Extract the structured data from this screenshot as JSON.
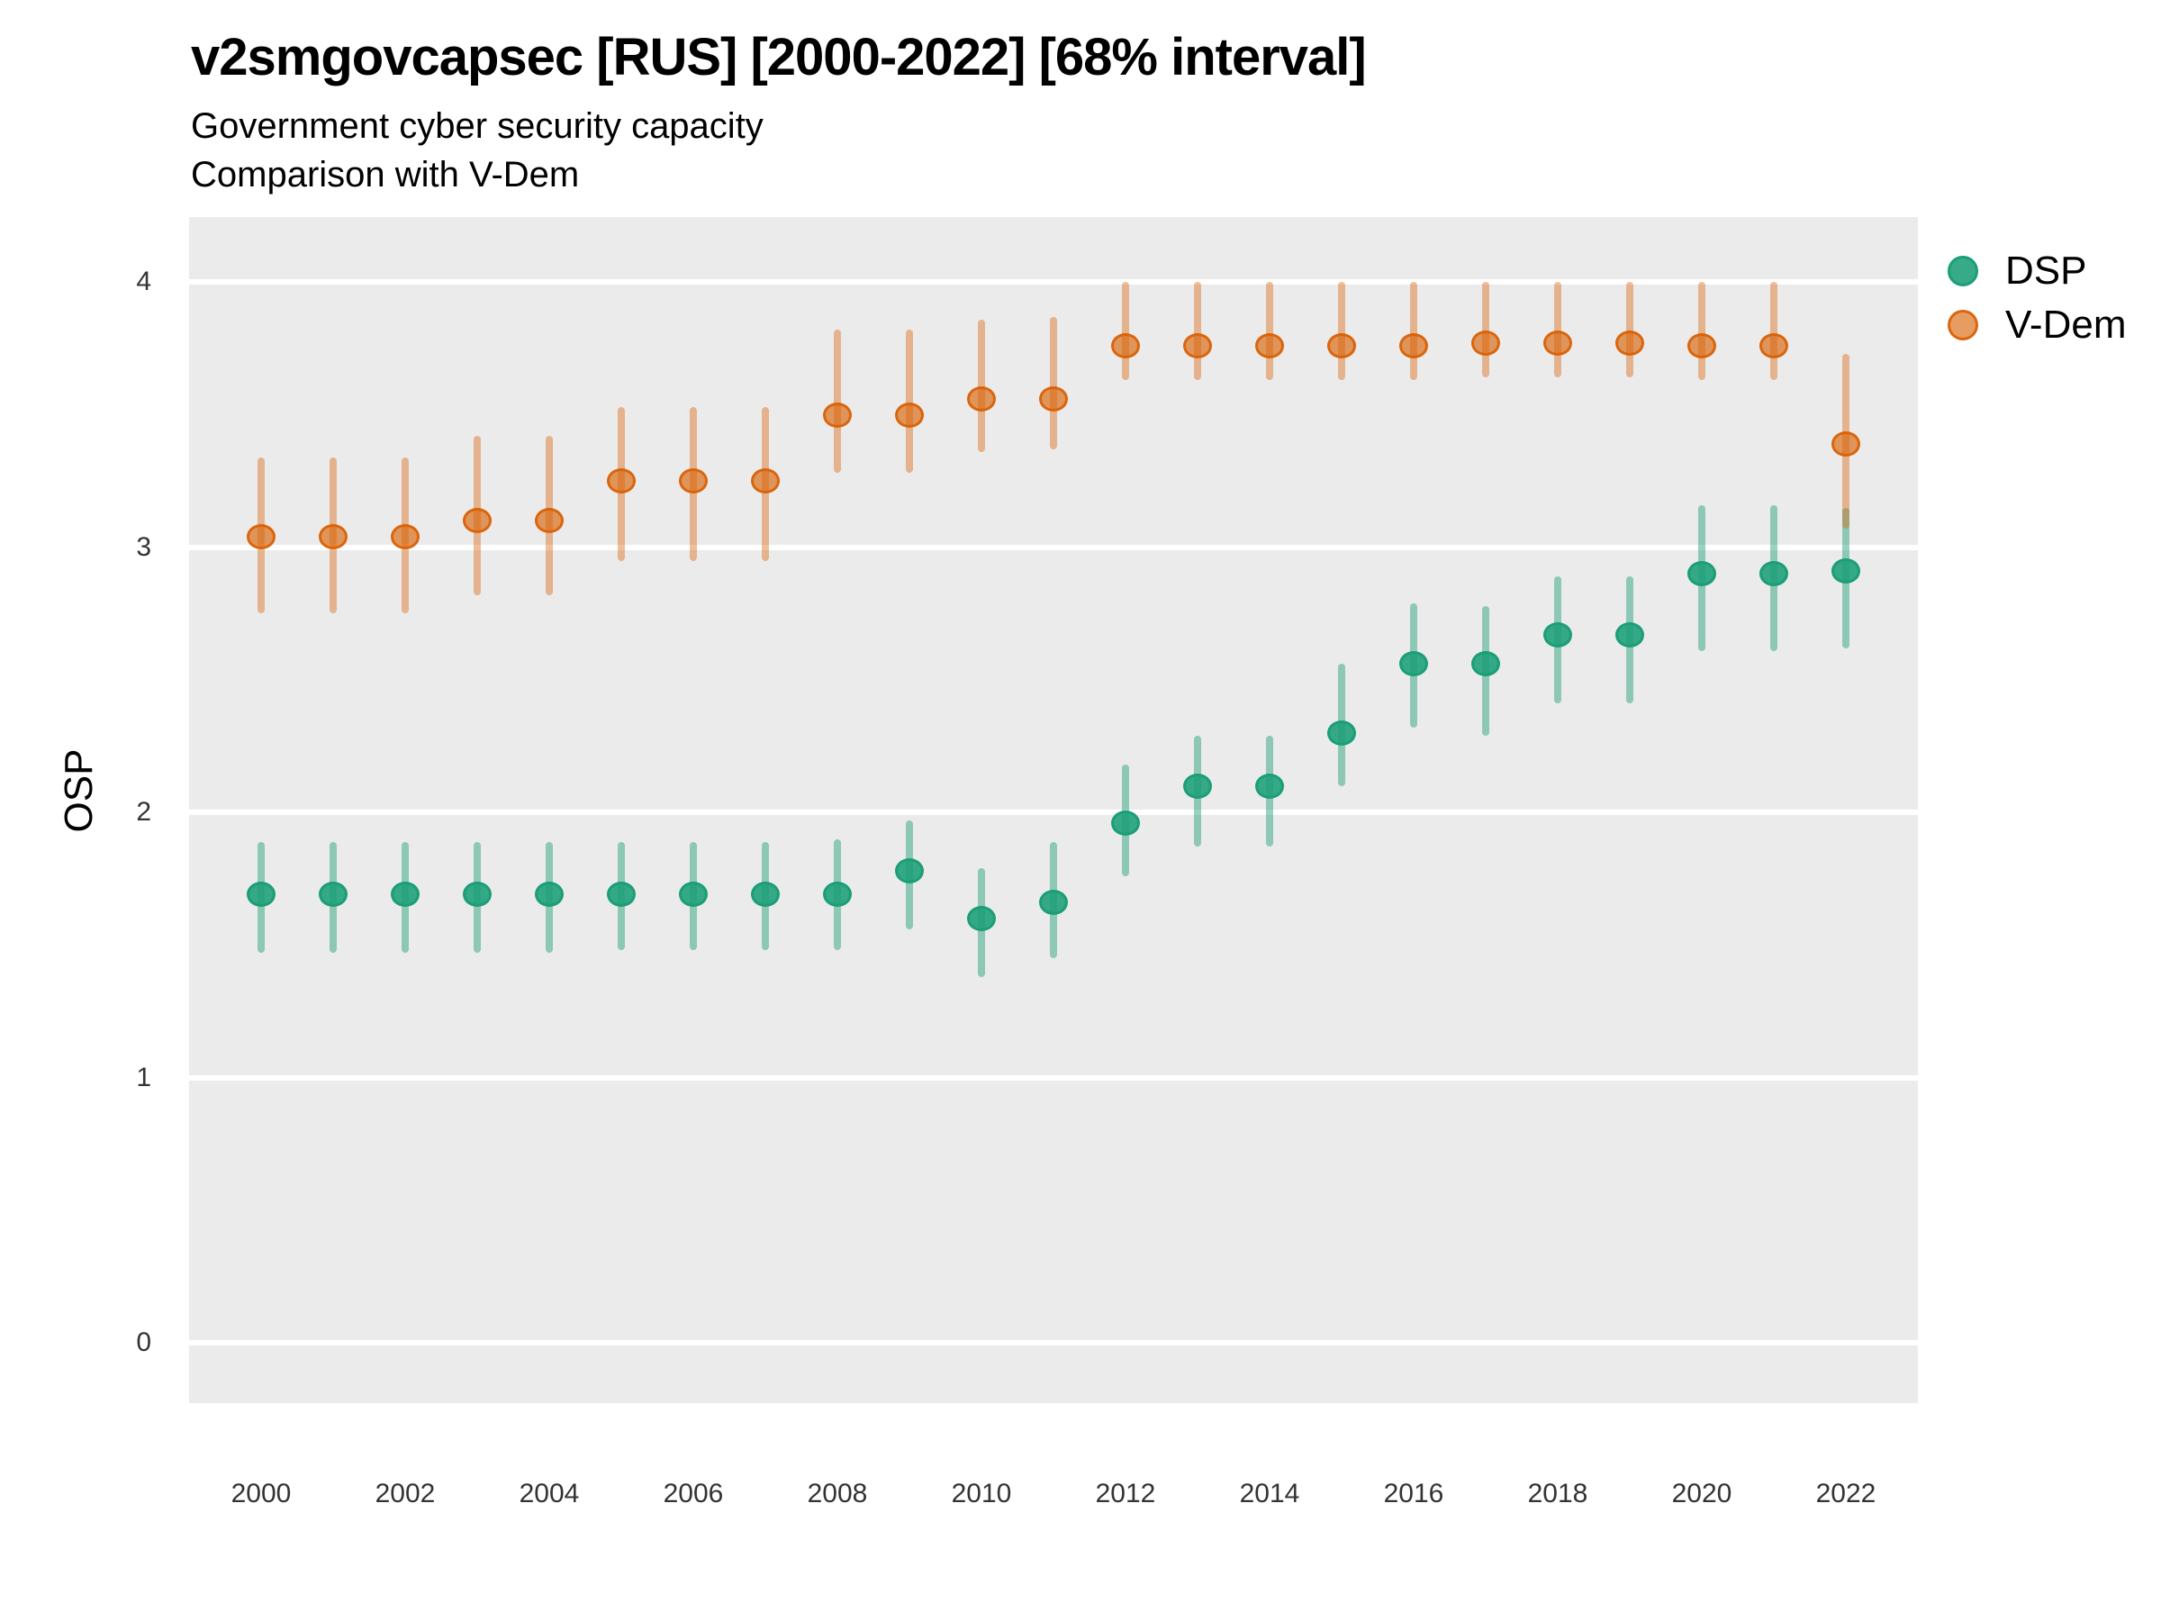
{
  "title": "v2smgovcapsec [RUS] [2000-2022] [68% interval]",
  "subtitle_line1": "Government cyber security capacity",
  "subtitle_line2": "Comparison with V-Dem",
  "y_axis_title": "OSP",
  "colors": {
    "dsp": "#1B9E77",
    "vdem": "#D95F02",
    "panel_background": "#EBEBEB",
    "gridline": "#FFFFFF",
    "tick_text": "#333333",
    "title_text": "#000000"
  },
  "legend": {
    "position": "right-top",
    "items": [
      {
        "label": "DSP",
        "series": "DSP"
      },
      {
        "label": "V-Dem",
        "series": "V-Dem"
      }
    ]
  },
  "axes": {
    "y_ticks": [
      0,
      1,
      2,
      3,
      4
    ],
    "x_ticks": [
      2000,
      2002,
      2004,
      2006,
      2008,
      2010,
      2012,
      2014,
      2016,
      2018,
      2020,
      2022
    ]
  },
  "chart_data": {
    "type": "scatter",
    "subtype": "pointrange",
    "interval": "68%",
    "title": "v2smgovcapsec [RUS] [2000-2022] [68% interval]",
    "xlabel": "",
    "ylabel": "OSP",
    "xlim": [
      1999,
      2023
    ],
    "ylim": [
      -0.23,
      4.25
    ],
    "grid": "horizontal-white-on-gray",
    "legend_position": "right",
    "x": [
      2000,
      2001,
      2002,
      2003,
      2004,
      2005,
      2006,
      2007,
      2008,
      2009,
      2010,
      2011,
      2012,
      2013,
      2014,
      2015,
      2016,
      2017,
      2018,
      2019,
      2020,
      2021,
      2022
    ],
    "series": [
      {
        "name": "DSP",
        "color": "#1B9E77",
        "values": [
          1.69,
          1.69,
          1.69,
          1.69,
          1.69,
          1.69,
          1.69,
          1.69,
          1.69,
          1.78,
          1.6,
          1.66,
          1.96,
          2.1,
          2.1,
          2.3,
          2.56,
          2.56,
          2.67,
          2.67,
          2.9,
          2.9,
          2.91
        ],
        "lo": [
          1.47,
          1.47,
          1.47,
          1.47,
          1.47,
          1.48,
          1.48,
          1.48,
          1.48,
          1.56,
          1.38,
          1.45,
          1.76,
          1.87,
          1.87,
          2.1,
          2.32,
          2.29,
          2.41,
          2.41,
          2.61,
          2.61,
          2.62
        ],
        "hi": [
          1.89,
          1.89,
          1.89,
          1.89,
          1.89,
          1.89,
          1.89,
          1.89,
          1.9,
          1.97,
          1.79,
          1.89,
          2.18,
          2.29,
          2.29,
          2.56,
          2.79,
          2.78,
          2.89,
          2.89,
          3.16,
          3.16,
          3.15
        ]
      },
      {
        "name": "V-Dem",
        "color": "#D95F02",
        "values": [
          3.04,
          3.04,
          3.04,
          3.1,
          3.1,
          3.25,
          3.25,
          3.25,
          3.5,
          3.5,
          3.56,
          3.56,
          3.76,
          3.76,
          3.76,
          3.76,
          3.76,
          3.77,
          3.77,
          3.77,
          3.76,
          3.76,
          3.39
        ],
        "lo": [
          2.75,
          2.75,
          2.75,
          2.82,
          2.82,
          2.95,
          2.95,
          2.95,
          3.28,
          3.28,
          3.36,
          3.37,
          3.63,
          3.63,
          3.63,
          3.63,
          3.63,
          3.64,
          3.64,
          3.64,
          3.63,
          3.63,
          3.07
        ],
        "hi": [
          3.34,
          3.34,
          3.34,
          3.42,
          3.42,
          3.53,
          3.53,
          3.53,
          3.82,
          3.82,
          3.86,
          3.87,
          4.0,
          4.0,
          4.0,
          4.0,
          4.0,
          4.0,
          4.0,
          4.0,
          4.0,
          4.0,
          3.73
        ]
      }
    ]
  }
}
